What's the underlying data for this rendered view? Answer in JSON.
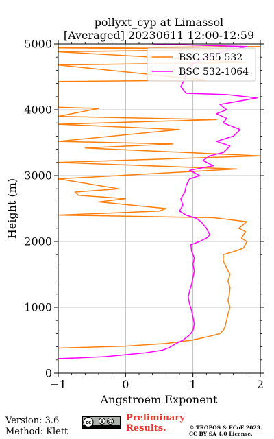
{
  "chart_data": {
    "type": "line",
    "title": [
      "pollyxt_cyp at Limassol",
      "[Averaged] 20230611 12:00-12:59"
    ],
    "xlabel": "Angstroem Exponent",
    "ylabel": "Height (m)",
    "xlim": [
      -1,
      2
    ],
    "ylim": [
      0,
      5000
    ],
    "xticks": [
      -1,
      0,
      1,
      2
    ],
    "xtick_labels": [
      "−1",
      "0",
      "1",
      "2"
    ],
    "yticks": [
      0,
      1000,
      2000,
      3000,
      4000,
      5000
    ],
    "ytick_labels": [
      "0",
      "1000",
      "2000",
      "3000",
      "4000",
      "5000"
    ],
    "grid": true,
    "legend": "upper right",
    "series": [
      {
        "name": "BSC 355-532",
        "color": "#ff7f0e",
        "points": [
          [
            -1.0,
            380
          ],
          [
            0.0,
            410
          ],
          [
            0.6,
            450
          ],
          [
            0.98,
            500
          ],
          [
            1.25,
            560
          ],
          [
            1.4,
            600
          ],
          [
            1.45,
            650
          ],
          [
            1.48,
            720
          ],
          [
            1.5,
            800
          ],
          [
            1.52,
            900
          ],
          [
            1.55,
            1000
          ],
          [
            1.52,
            1100
          ],
          [
            1.54,
            1200
          ],
          [
            1.55,
            1300
          ],
          [
            1.52,
            1400
          ],
          [
            1.55,
            1500
          ],
          [
            1.5,
            1600
          ],
          [
            1.45,
            1700
          ],
          [
            1.45,
            1800
          ],
          [
            1.62,
            1850
          ],
          [
            1.75,
            1900
          ],
          [
            1.8,
            2000
          ],
          [
            1.72,
            2050
          ],
          [
            1.78,
            2150
          ],
          [
            1.68,
            2200
          ],
          [
            1.8,
            2300
          ],
          [
            1.3,
            2360
          ],
          [
            -1.0,
            2400
          ],
          [
            0.5,
            2460
          ],
          [
            0.6,
            2500
          ],
          [
            0.1,
            2550
          ],
          [
            -0.4,
            2600
          ],
          [
            0.0,
            2650
          ],
          [
            -0.7,
            2700
          ],
          [
            -0.75,
            2750
          ],
          [
            -0.1,
            2800
          ],
          [
            -1.0,
            2950
          ],
          [
            1.65,
            3100
          ],
          [
            -1.0,
            3200
          ],
          [
            2.0,
            3300
          ],
          [
            -0.6,
            3420
          ],
          [
            0.7,
            3480
          ],
          [
            -1.0,
            3520
          ],
          [
            0.8,
            3700
          ],
          [
            -1.0,
            3780
          ],
          [
            1.35,
            3850
          ],
          [
            -1.0,
            3900
          ],
          [
            -0.4,
            4020
          ],
          [
            -1.0,
            4040
          ],
          [
            -1.0,
            4430
          ],
          [
            1.2,
            4450
          ],
          [
            -1.0,
            4680
          ],
          [
            1.8,
            4720
          ],
          [
            -1.0,
            4880
          ],
          [
            1.9,
            4920
          ],
          [
            -1.0,
            4940
          ],
          [
            2.0,
            4960
          ]
        ]
      },
      {
        "name": "BSC 532-1064",
        "color": "#ff00ff",
        "points": [
          [
            -1.0,
            220
          ],
          [
            -0.7,
            230
          ],
          [
            -0.3,
            250
          ],
          [
            0.0,
            280
          ],
          [
            0.3,
            310
          ],
          [
            0.55,
            350
          ],
          [
            0.65,
            390
          ],
          [
            0.75,
            450
          ],
          [
            0.85,
            500
          ],
          [
            0.95,
            580
          ],
          [
            1.0,
            650
          ],
          [
            1.02,
            750
          ],
          [
            1.0,
            850
          ],
          [
            0.98,
            950
          ],
          [
            0.95,
            1050
          ],
          [
            0.93,
            1150
          ],
          [
            0.95,
            1250
          ],
          [
            0.98,
            1350
          ],
          [
            1.0,
            1450
          ],
          [
            1.02,
            1550
          ],
          [
            1.0,
            1650
          ],
          [
            1.02,
            1750
          ],
          [
            0.98,
            1850
          ],
          [
            0.97,
            1950
          ],
          [
            1.1,
            2000
          ],
          [
            1.2,
            2050
          ],
          [
            1.25,
            2100
          ],
          [
            1.2,
            2200
          ],
          [
            1.12,
            2300
          ],
          [
            1.05,
            2350
          ],
          [
            0.9,
            2400
          ],
          [
            0.8,
            2460
          ],
          [
            0.85,
            2550
          ],
          [
            0.82,
            2650
          ],
          [
            0.88,
            2750
          ],
          [
            0.9,
            2850
          ],
          [
            0.95,
            2950
          ],
          [
            1.1,
            3000
          ],
          [
            0.95,
            3080
          ],
          [
            1.3,
            3150
          ],
          [
            1.15,
            3230
          ],
          [
            1.25,
            3300
          ],
          [
            1.45,
            3350
          ],
          [
            1.55,
            3450
          ],
          [
            1.35,
            3520
          ],
          [
            1.6,
            3600
          ],
          [
            1.7,
            3700
          ],
          [
            1.45,
            3800
          ],
          [
            1.5,
            3870
          ],
          [
            1.35,
            3940
          ],
          [
            1.5,
            4000
          ],
          [
            1.4,
            4080
          ],
          [
            1.95,
            4180
          ],
          [
            1.5,
            4230
          ],
          [
            0.9,
            4250
          ],
          [
            0.82,
            4350
          ],
          [
            0.88,
            4480
          ],
          [
            0.9,
            4600
          ],
          [
            1.0,
            4700
          ],
          [
            1.2,
            4800
          ],
          [
            1.5,
            4900
          ],
          [
            1.8,
            4960
          ],
          [
            0.4,
            5000
          ]
        ]
      }
    ]
  },
  "footer": {
    "version": "Version: 3.6",
    "method": "Method: Klett",
    "preliminary": [
      "Preliminary",
      "Results."
    ],
    "copyright": [
      "© TROPOS & ECoE 2023.",
      "CC BY SA 4.0 License."
    ]
  }
}
